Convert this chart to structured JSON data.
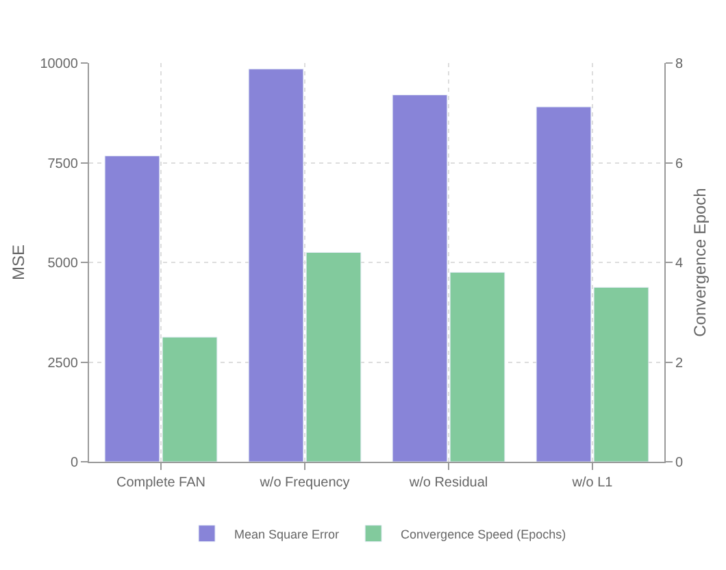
{
  "chart_data": {
    "type": "bar",
    "categories": [
      "Complete FAN",
      "w/o Frequency",
      "w/o Residual",
      "w/o L1"
    ],
    "ylabel": "MSE",
    "y2label": "Convergence Epoch",
    "series": [
      {
        "name": "Mean Square Error",
        "color": "#8884d8",
        "values": [
          7670,
          9850,
          9200,
          8900
        ]
      },
      {
        "name": "Convergence Speed (Epochs)",
        "color": "#82ca9d",
        "values": [
          2.5,
          4.2,
          3.8,
          3.5
        ],
        "axis": "y2"
      }
    ],
    "ylim": [
      0,
      10000
    ],
    "yticks": [
      0,
      2500,
      5000,
      7500,
      10000
    ],
    "y2lim": [
      0,
      8
    ],
    "y2ticks": [
      0,
      2,
      4,
      6,
      8
    ],
    "grid": true,
    "line_style": "dotted",
    "legend": "bottom"
  }
}
